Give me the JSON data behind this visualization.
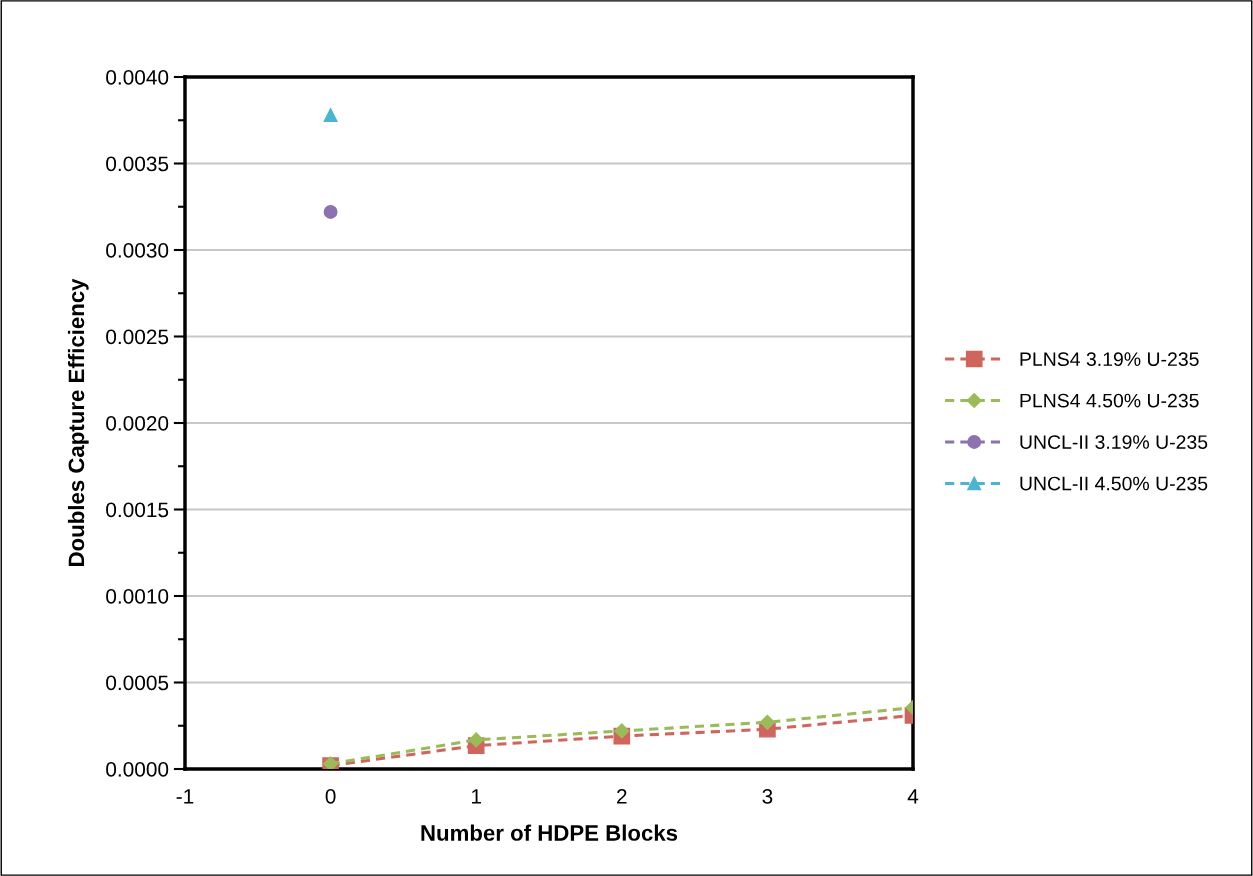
{
  "chart_data": {
    "type": "line",
    "xlabel": "Number of HDPE Blocks",
    "ylabel": "Doubles Capture Efficiency",
    "xlim": [
      -1,
      4
    ],
    "xticks": [
      -1,
      0,
      1,
      2,
      3,
      4
    ],
    "ylim": [
      0,
      0.004
    ],
    "yticks": [
      {
        "value": 0,
        "label": "0.0000"
      },
      {
        "value": 0.0005,
        "label": "0.0005"
      },
      {
        "value": 0.001,
        "label": "0.0010"
      },
      {
        "value": 0.0015,
        "label": "0.0015"
      },
      {
        "value": 0.002,
        "label": "0.0020"
      },
      {
        "value": 0.0025,
        "label": "0.0025"
      },
      {
        "value": 0.003,
        "label": "0.0030"
      },
      {
        "value": 0.0035,
        "label": "0.0035"
      },
      {
        "value": 0.004,
        "label": "0.0040"
      }
    ],
    "grid": "y",
    "legend": "right",
    "line_style": "dashed",
    "series": [
      {
        "name": "PLNS4 3.19% U-235",
        "color": "#d0655e",
        "marker": "square",
        "x": [
          0,
          1,
          2,
          3,
          4
        ],
        "values": [
          2e-05,
          0.000135,
          0.00019,
          0.00023,
          0.00031
        ]
      },
      {
        "name": "PLNS4 4.50% U-235",
        "color": "#9bbb59",
        "marker": "diamond",
        "x": [
          0,
          1,
          2,
          3,
          4
        ],
        "values": [
          3e-05,
          0.000168,
          0.00022,
          0.00027,
          0.000355
        ]
      },
      {
        "name": "UNCL-II 3.19% U-235",
        "color": "#8c73b0",
        "marker": "circle",
        "x": [
          0
        ],
        "values": [
          0.00322
        ]
      },
      {
        "name": "UNCL-II 4.50% U-235",
        "color": "#4bb5d0",
        "marker": "triangle",
        "x": [
          0
        ],
        "values": [
          0.00378
        ]
      }
    ]
  }
}
